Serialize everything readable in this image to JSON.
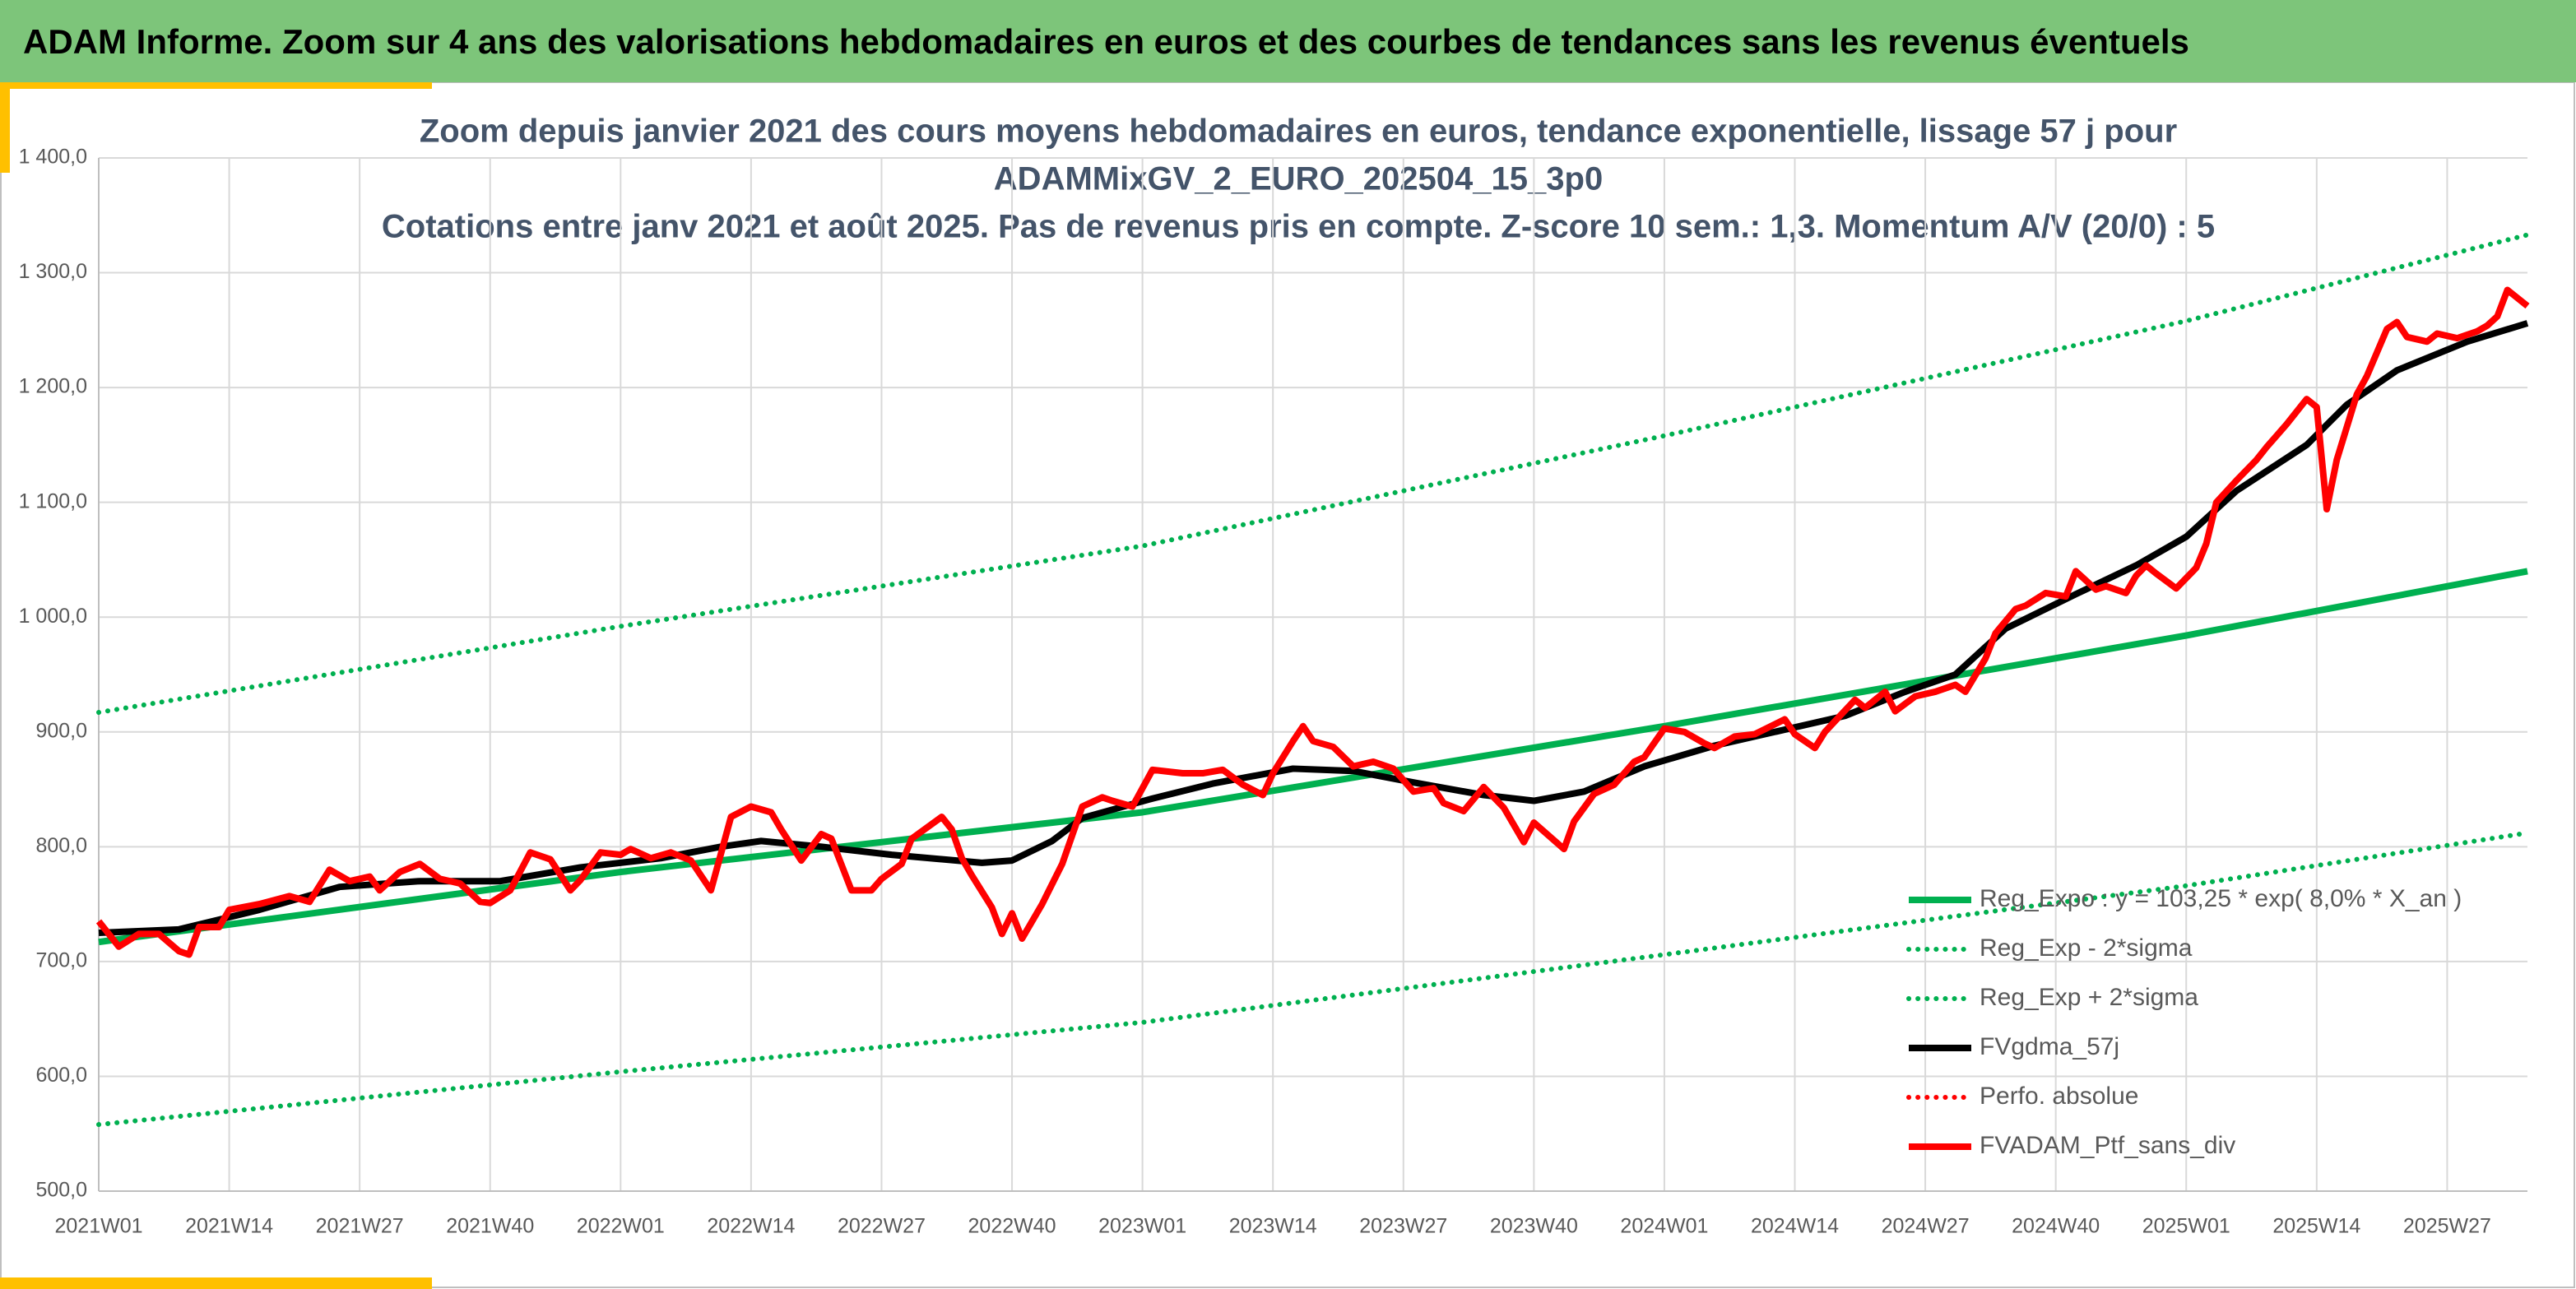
{
  "header": {
    "title": "ADAM Informe. Zoom sur 4 ans des valorisations hebdomadaires en euros et des courbes de tendances sans les revenus éventuels"
  },
  "chart_data": {
    "type": "line",
    "title": [
      "Zoom depuis janvier 2021 des cours moyens hebdomadaires en euros, tendance exponentielle, lissage 57 j pour",
      "ADAMMixGV_2_EURO_202504_15_3p0",
      "Cotations entre janv 2021 et août 2025. Pas de revenus pris en compte. Z-score 10 sem.: 1,3. Momentum A/V (20/0) : 5"
    ],
    "xlim": [
      0,
      242
    ],
    "xticks": [
      {
        "value": 0,
        "label": "2021W01"
      },
      {
        "value": 13,
        "label": "2021W14"
      },
      {
        "value": 26,
        "label": "2021W27"
      },
      {
        "value": 39,
        "label": "2021W40"
      },
      {
        "value": 52,
        "label": "2022W01"
      },
      {
        "value": 65,
        "label": "2022W14"
      },
      {
        "value": 78,
        "label": "2022W27"
      },
      {
        "value": 91,
        "label": "2022W40"
      },
      {
        "value": 104,
        "label": "2023W01"
      },
      {
        "value": 117,
        "label": "2023W14"
      },
      {
        "value": 130,
        "label": "2023W27"
      },
      {
        "value": 143,
        "label": "2023W40"
      },
      {
        "value": 156,
        "label": "2024W01"
      },
      {
        "value": 169,
        "label": "2024W14"
      },
      {
        "value": 182,
        "label": "2024W27"
      },
      {
        "value": 195,
        "label": "2024W40"
      },
      {
        "value": 208,
        "label": "2025W01"
      },
      {
        "value": 221,
        "label": "2025W14"
      },
      {
        "value": 234,
        "label": "2025W27"
      }
    ],
    "ylim": [
      500,
      1400
    ],
    "yticks": [
      {
        "value": 500,
        "label": "500,0"
      },
      {
        "value": 600,
        "label": "600,0"
      },
      {
        "value": 700,
        "label": "700,0"
      },
      {
        "value": 800,
        "label": "800,0"
      },
      {
        "value": 900,
        "label": "900,0"
      },
      {
        "value": 1000,
        "label": "1 000,0"
      },
      {
        "value": 1100,
        "label": "1 100,0"
      },
      {
        "value": 1200,
        "label": "1 200,0"
      },
      {
        "value": 1300,
        "label": "1 300,0"
      },
      {
        "value": 1400,
        "label": "1 400,0"
      }
    ],
    "grid": true,
    "series": [
      {
        "name": "Reg_Expo : y = 103,25 * exp( 8,0% *  X_an )",
        "color": "#00b050",
        "style": "solid",
        "x": [
          0,
          52,
          104,
          156,
          208,
          242
        ],
        "values": [
          717,
          778,
          830,
          905,
          984,
          1040
        ]
      },
      {
        "name": "Reg_Exp - 2*sigma",
        "color": "#00b050",
        "style": "dotted",
        "x": [
          0,
          52,
          104,
          156,
          208,
          242
        ],
        "values": [
          558,
          604,
          647,
          706,
          766,
          812
        ]
      },
      {
        "name": "Reg_Exp + 2*sigma",
        "color": "#00b050",
        "style": "dotted",
        "x": [
          0,
          52,
          104,
          156,
          208,
          242
        ],
        "values": [
          917,
          992,
          1062,
          1158,
          1258,
          1333
        ]
      },
      {
        "name": "FVgdma_57j",
        "color": "#000000",
        "style": "solid",
        "x": [
          0,
          8,
          16,
          24,
          32,
          40,
          48,
          56,
          62,
          66,
          72,
          79,
          88,
          91,
          95,
          98,
          105,
          111,
          119,
          125,
          131,
          138,
          143,
          148,
          154,
          161,
          167,
          174,
          180,
          185,
          190,
          197,
          203,
          208,
          213,
          220,
          224,
          229,
          236,
          242
        ],
        "values": [
          725,
          728,
          745,
          765,
          770,
          770,
          782,
          790,
          800,
          805,
          800,
          793,
          786,
          788,
          805,
          825,
          842,
          855,
          868,
          866,
          856,
          845,
          840,
          848,
          870,
          888,
          900,
          914,
          935,
          950,
          990,
          1020,
          1045,
          1070,
          1110,
          1150,
          1185,
          1215,
          1240,
          1256
        ]
      },
      {
        "name": "Perfo. absolue",
        "color": "#ff0000",
        "style": "dotted",
        "x": [],
        "values": []
      },
      {
        "name": "FVADAM_Ptf_sans_div",
        "color": "#ff0000",
        "style": "solid",
        "x": [
          0,
          2,
          4,
          6,
          8,
          9,
          10,
          12,
          13,
          16,
          19,
          21,
          23,
          25,
          27,
          28,
          30,
          32,
          34,
          36,
          38,
          39,
          41,
          43,
          45,
          47,
          48,
          50,
          52,
          53,
          55,
          57,
          59,
          61,
          63,
          65,
          67,
          68,
          70,
          72,
          73,
          75,
          77,
          78,
          80,
          81,
          84,
          85,
          86,
          87,
          89,
          90,
          91,
          92,
          94,
          96,
          98,
          100,
          101,
          103,
          105,
          108,
          110,
          112,
          114,
          116,
          117,
          119,
          120,
          121,
          123,
          125,
          127,
          129,
          131,
          133,
          134,
          136,
          138,
          140,
          142,
          143,
          146,
          147,
          149,
          151,
          153,
          154,
          156,
          158,
          160,
          161,
          163,
          165,
          168,
          169,
          171,
          172,
          175,
          176,
          178,
          179,
          181,
          183,
          185,
          186,
          188,
          189,
          191,
          192,
          194,
          196,
          197,
          199,
          200,
          202,
          203,
          204,
          205,
          207,
          209,
          210,
          211,
          213,
          215,
          216,
          217,
          218,
          220,
          221,
          222,
          223,
          225,
          226,
          228,
          229,
          230,
          232,
          233,
          235,
          237,
          238,
          239,
          240,
          242
        ],
        "values": [
          735,
          713,
          724,
          724,
          709,
          706,
          730,
          730,
          745,
          750,
          757,
          752,
          780,
          770,
          774,
          762,
          778,
          785,
          772,
          768,
          752,
          751,
          762,
          795,
          789,
          762,
          771,
          795,
          793,
          798,
          790,
          795,
          788,
          762,
          826,
          835,
          830,
          815,
          788,
          811,
          807,
          762,
          762,
          772,
          785,
          807,
          826,
          815,
          790,
          775,
          747,
          724,
          742,
          720,
          750,
          785,
          835,
          843,
          840,
          835,
          867,
          864,
          864,
          867,
          854,
          845,
          864,
          892,
          905,
          892,
          887,
          870,
          874,
          868,
          848,
          851,
          838,
          831,
          852,
          834,
          804,
          821,
          798,
          822,
          846,
          854,
          874,
          878,
          903,
          900,
          890,
          886,
          896,
          898,
          911,
          898,
          886,
          900,
          928,
          921,
          935,
          918,
          931,
          935,
          941,
          935,
          964,
          986,
          1007,
          1010,
          1021,
          1018,
          1040,
          1024,
          1027,
          1021,
          1036,
          1045,
          1038,
          1025,
          1043,
          1064,
          1100,
          1119,
          1137,
          1148,
          1158,
          1168,
          1190,
          1183,
          1094,
          1137,
          1194,
          1210,
          1251,
          1257,
          1244,
          1240,
          1247,
          1243,
          1249,
          1254,
          1262,
          1285,
          1271
        ]
      }
    ]
  }
}
